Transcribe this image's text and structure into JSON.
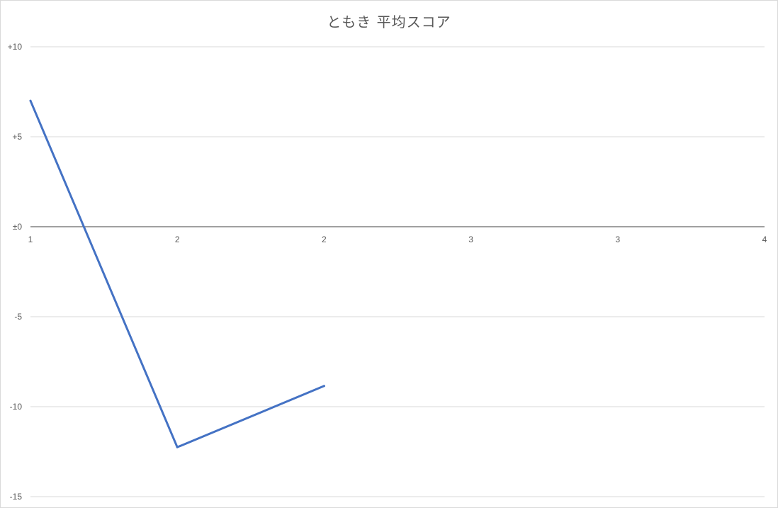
{
  "chart_data": {
    "type": "line",
    "title": "ともき 平均スコア",
    "xlabel": "",
    "ylabel": "",
    "x": [
      1,
      2,
      3
    ],
    "xlim": [
      1,
      6
    ],
    "x_ticks": [
      1,
      2,
      3,
      4,
      5,
      6
    ],
    "x_tick_labels": [
      "1",
      "2",
      "2",
      "3",
      "3",
      "4"
    ],
    "ylim": [
      -15,
      10
    ],
    "y_ticks": [
      10,
      5,
      0,
      -5,
      -10,
      -15
    ],
    "y_tick_labels": [
      "+10",
      "+5",
      "±0",
      "-5",
      "-10",
      "-15"
    ],
    "grid": true,
    "legend": "none",
    "series": [
      {
        "values": [
          7,
          -12.25,
          -8.85
        ],
        "color": "#4472c4"
      }
    ],
    "colors": {
      "grid": "#d9d9d9",
      "axis": "#404040",
      "text": "#595959"
    }
  }
}
